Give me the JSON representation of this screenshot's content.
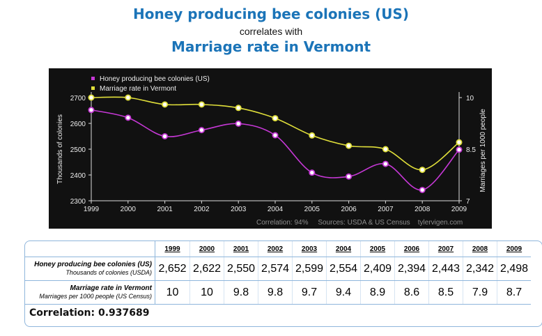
{
  "header": {
    "title1": "Honey producing bee colonies (US)",
    "connector": "correlates with",
    "title2": "Marriage rate in Vermont"
  },
  "chart_data": {
    "type": "line",
    "x": [
      1999,
      2000,
      2001,
      2002,
      2003,
      2004,
      2005,
      2006,
      2007,
      2008,
      2009
    ],
    "series": [
      {
        "name": "Honey producing bee colonies (US)",
        "axis": "left",
        "color": "#c638d6",
        "values": [
          2652,
          2622,
          2550,
          2574,
          2599,
          2554,
          2409,
          2394,
          2443,
          2342,
          2498
        ]
      },
      {
        "name": "Marriage rate in Vermont",
        "axis": "right",
        "color": "#e0df3a",
        "values": [
          10,
          10,
          9.8,
          9.8,
          9.7,
          9.4,
          8.9,
          8.6,
          8.5,
          7.9,
          8.7
        ]
      }
    ],
    "ylabel": "Thousands of colonies",
    "y2label": "Marriages per 1000 people",
    "ylim": [
      2300,
      2700
    ],
    "y2lim": [
      7,
      10
    ],
    "yticks": [
      2300,
      2400,
      2500,
      2600,
      2700
    ],
    "y2ticks": [
      7,
      8.5,
      10
    ],
    "legend_position": "top-left",
    "grid": false,
    "background": "#111111",
    "footer": "Correlation: 94%     Sources: USDA & US Census    tylervigen.com"
  },
  "table": {
    "years": [
      "1999",
      "2000",
      "2001",
      "2002",
      "2003",
      "2004",
      "2005",
      "2006",
      "2007",
      "2008",
      "2009"
    ],
    "rows": [
      {
        "label": "Honey producing bee colonies (US)",
        "sublabel": "Thousands of colonies (USDA)",
        "values": [
          "2,652",
          "2,622",
          "2,550",
          "2,574",
          "2,599",
          "2,554",
          "2,409",
          "2,394",
          "2,443",
          "2,342",
          "2,498"
        ]
      },
      {
        "label": "Marriage rate in Vermont",
        "sublabel": "Marriages per 1000 people (US Census)",
        "values": [
          "10",
          "10",
          "9.8",
          "9.8",
          "9.7",
          "9.4",
          "8.9",
          "8.6",
          "8.5",
          "7.9",
          "8.7"
        ]
      }
    ],
    "correlation": "Correlation: 0.937689"
  }
}
